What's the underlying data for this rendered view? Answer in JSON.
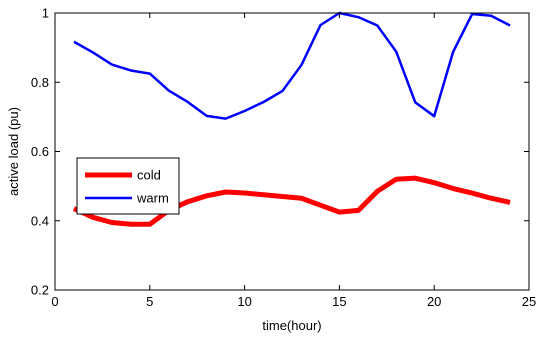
{
  "chart_data": {
    "type": "line",
    "xlabel": "time(hour)",
    "ylabel": "active load (pu)",
    "xlim": [
      0,
      25
    ],
    "ylim": [
      0.2,
      1.0
    ],
    "xticks": [
      0,
      5,
      10,
      15,
      20,
      25
    ],
    "yticks": [
      0.2,
      0.4,
      0.6,
      0.8,
      1.0
    ],
    "xtick_labels": [
      "0",
      "5",
      "10",
      "15",
      "20",
      "25"
    ],
    "ytick_labels": [
      "0.2",
      "0.4",
      "0.6",
      "0.8",
      "1"
    ],
    "grid": false,
    "legend_position": "left",
    "x": [
      1,
      2,
      3,
      4,
      5,
      6,
      7,
      8,
      9,
      10,
      11,
      12,
      13,
      14,
      15,
      16,
      17,
      18,
      19,
      20,
      21,
      22,
      23,
      24
    ],
    "series": [
      {
        "name": "cold",
        "color": "#ff0000",
        "values": [
          0.435,
          0.41,
          0.395,
          0.39,
          0.39,
          0.43,
          0.455,
          0.472,
          0.483,
          0.48,
          0.475,
          0.47,
          0.465,
          0.445,
          0.425,
          0.43,
          0.485,
          0.52,
          0.523,
          0.51,
          0.493,
          0.48,
          0.465,
          0.453
        ]
      },
      {
        "name": "warm",
        "color": "#0000ff",
        "values": [
          0.917,
          0.886,
          0.851,
          0.834,
          0.825,
          0.776,
          0.743,
          0.703,
          0.695,
          0.717,
          0.743,
          0.775,
          0.85,
          0.965,
          1.0,
          0.988,
          0.964,
          0.888,
          0.742,
          0.702,
          0.888,
          0.997,
          0.992,
          0.964
        ]
      }
    ]
  }
}
